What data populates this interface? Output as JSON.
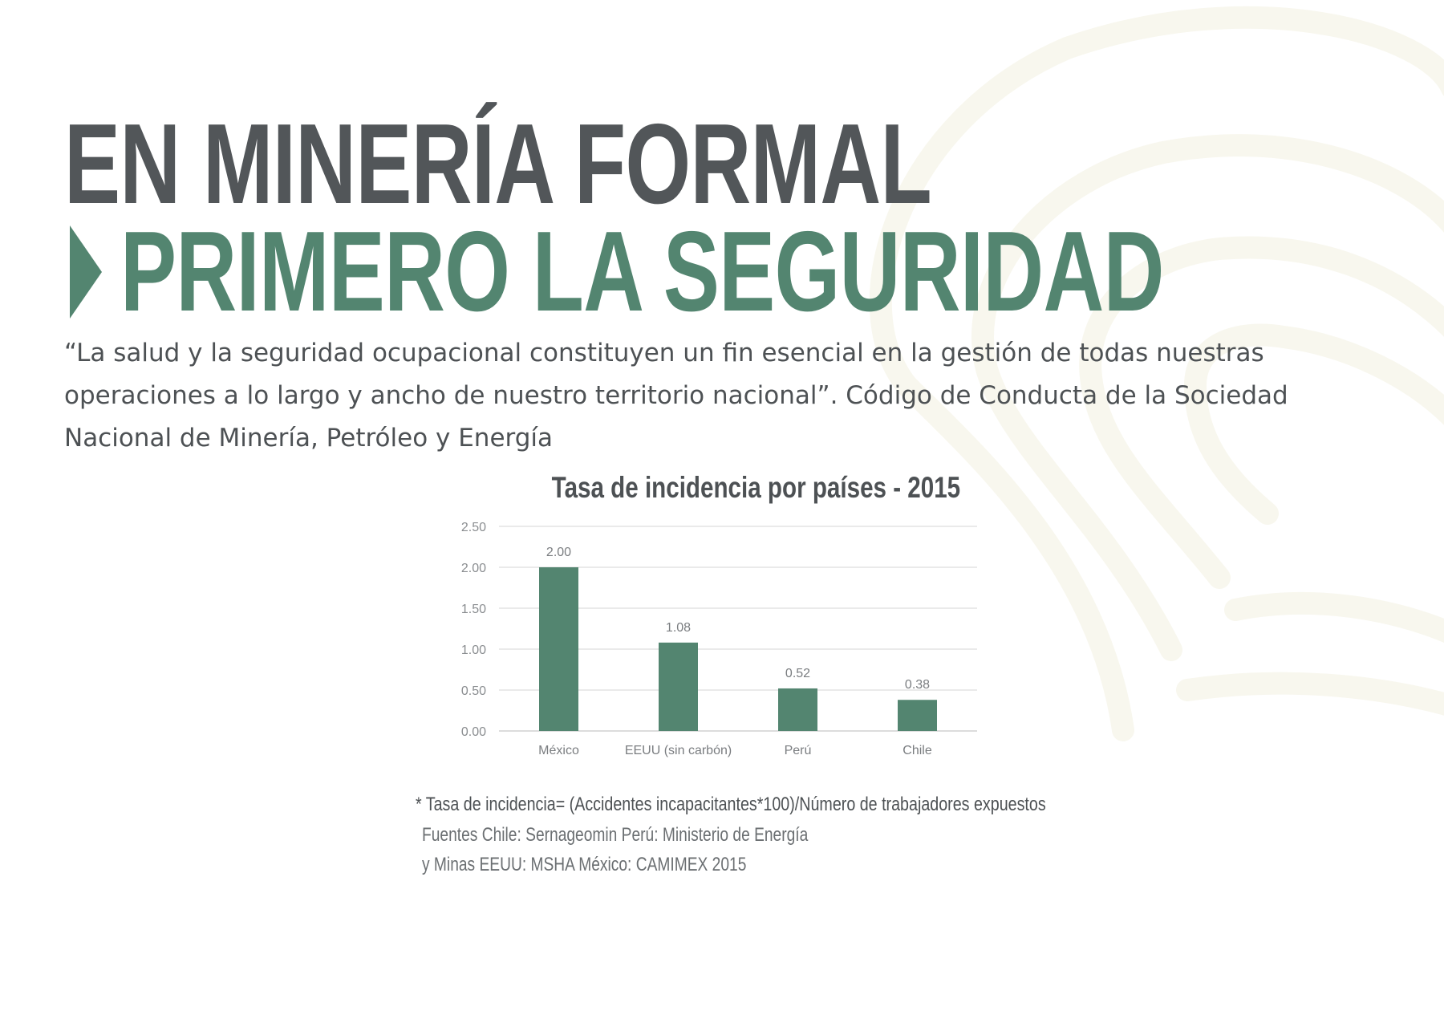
{
  "heading": {
    "line1": "EN MINERÍA FORMAL",
    "line2": "PRIMERO LA SEGURIDAD"
  },
  "quote": "“La salud y la seguridad ocupacional constituyen un fin esencial en la gestión de todas nuestras operaciones a lo largo y ancho de nuestro territorio nacional”. Código de Conducta de la Sociedad Nacional de Minería, Petróleo y Energía",
  "colors": {
    "accent": "#538570",
    "heading_gray": "#525659",
    "text": "#4d5154"
  },
  "chart_data": {
    "type": "bar",
    "title": "Tasa de incidencia por países - 2015",
    "categories": [
      "México",
      "EEUU (sin carbón)",
      "Perú",
      "Chile"
    ],
    "values": [
      2.0,
      1.08,
      0.52,
      0.38
    ],
    "value_labels": [
      "2.00",
      "1.08",
      "0.52",
      "0.38"
    ],
    "yticks": [
      "0.00",
      "0.50",
      "1.00",
      "1.50",
      "2.00",
      "2.50"
    ],
    "ylim": [
      0,
      2.5
    ],
    "xlabel": "",
    "ylabel": "",
    "grid": true,
    "bar_color": "#538570"
  },
  "footnote": "* Tasa de incidencia= (Accidentes incapacitantes*100)/Número de trabajadores expuestos",
  "sources": {
    "line1": "Fuentes Chile: Sernageomin Perú: Ministerio de Energía",
    "line2": "y Minas EEUU: MSHA México: CAMIMEX 2015"
  }
}
